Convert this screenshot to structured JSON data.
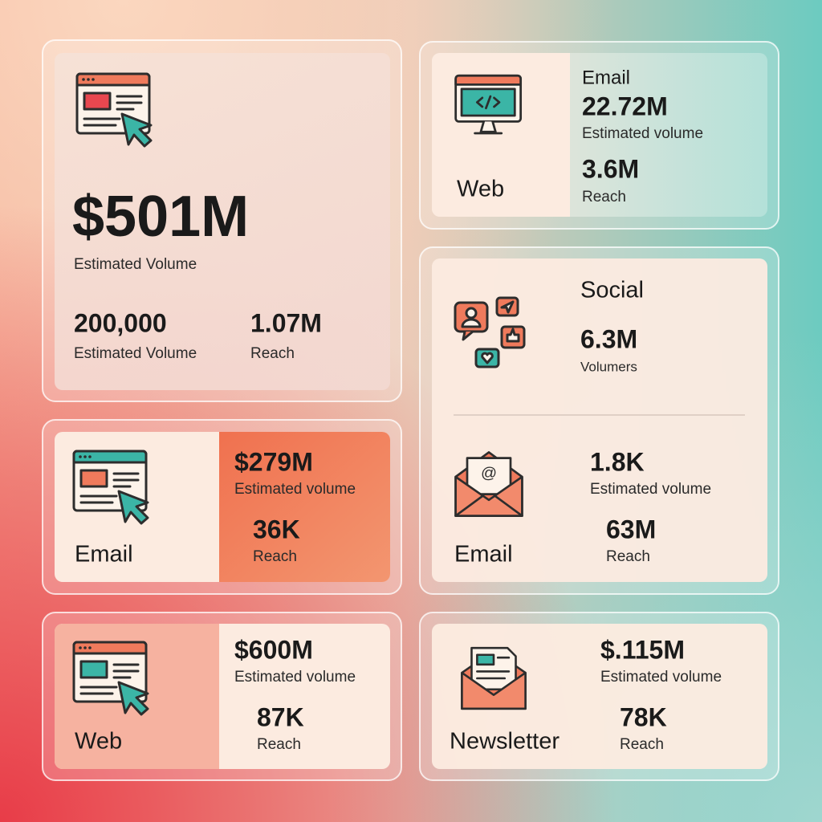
{
  "cards": [
    {
      "value": "$501M",
      "label": "Estimated Volume",
      "stats": [
        {
          "value": "200,000",
          "label": "Estimated Volume"
        },
        {
          "value": "1.07M",
          "label": "Reach"
        }
      ]
    },
    {
      "channel": "Web",
      "title": "Email",
      "stats": [
        {
          "value": "22.72M",
          "label": "Estimated volume"
        },
        {
          "value": "3.6M",
          "label": "Reach"
        }
      ]
    },
    {
      "sections": [
        {
          "title": "Social",
          "stats": [
            {
              "value": "6.3M",
              "label": "Volumers"
            }
          ]
        },
        {
          "channel": "Email",
          "stats": [
            {
              "value": "1.8K",
              "label": "Estimated volume"
            },
            {
              "value": "63M",
              "label": "Reach"
            }
          ]
        }
      ]
    },
    {
      "channel": "Email",
      "stats": [
        {
          "value": "$279M",
          "label": "Estimated volume"
        },
        {
          "value": "36K",
          "label": "Reach"
        }
      ]
    },
    {
      "channel": "Web",
      "stats": [
        {
          "value": "$600M",
          "label": "Estimated volume"
        },
        {
          "value": "87K",
          "label": "Reach"
        }
      ]
    },
    {
      "channel": "Newsletter",
      "stats": [
        {
          "value": "$.115M",
          "label": "Estimated volume"
        },
        {
          "value": "78K",
          "label": "Reach"
        }
      ]
    }
  ]
}
